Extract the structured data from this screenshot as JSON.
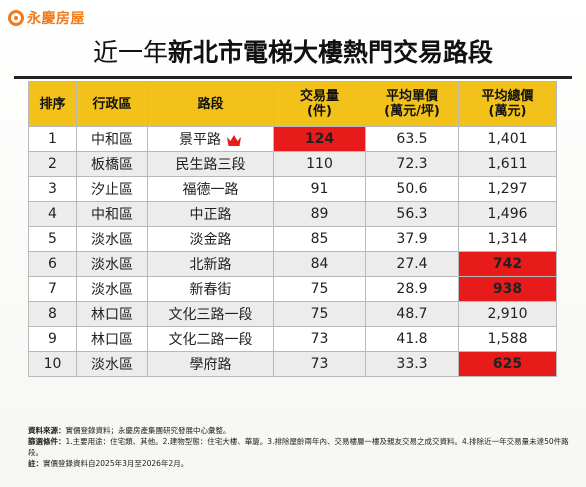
{
  "brand": {
    "name": "永慶房屋",
    "accent": "#f07a1a"
  },
  "title": {
    "prefix": "近一年",
    "main": "新北市電梯大樓熱門交易路段"
  },
  "colors": {
    "header": "#f2c21a",
    "highlight": "#e81b1b",
    "road": "#1d5bc7",
    "alt_row": "#ececec"
  },
  "chart_data": {
    "type": "table",
    "headers": {
      "rank": "排序",
      "district": "行政區",
      "road": "路段",
      "volume": "交易量\n(件)",
      "unit_price": "平均單價\n(萬元/坪)",
      "total_price": "平均總價\n(萬元)"
    },
    "rows": [
      {
        "rank": "1",
        "district": "中和區",
        "road": "景平路",
        "volume": "124",
        "unit_price": "63.5",
        "total_price": "1,401",
        "crown": true,
        "volume_hl": true
      },
      {
        "rank": "2",
        "district": "板橋區",
        "road": "民生路三段",
        "volume": "110",
        "unit_price": "72.3",
        "total_price": "1,611"
      },
      {
        "rank": "3",
        "district": "汐止區",
        "road": "福德一路",
        "volume": "91",
        "unit_price": "50.6",
        "total_price": "1,297"
      },
      {
        "rank": "4",
        "district": "中和區",
        "road": "中正路",
        "volume": "89",
        "unit_price": "56.3",
        "total_price": "1,496"
      },
      {
        "rank": "5",
        "district": "淡水區",
        "road": "淡金路",
        "volume": "85",
        "unit_price": "37.9",
        "total_price": "1,314"
      },
      {
        "rank": "6",
        "district": "淡水區",
        "road": "北新路",
        "volume": "84",
        "unit_price": "27.4",
        "total_price": "742",
        "total_hl": true
      },
      {
        "rank": "7",
        "district": "淡水區",
        "road": "新春街",
        "volume": "75",
        "unit_price": "28.9",
        "total_price": "938",
        "total_hl": true
      },
      {
        "rank": "8",
        "district": "林口區",
        "road": "文化三路一段",
        "volume": "75",
        "unit_price": "48.7",
        "total_price": "2,910"
      },
      {
        "rank": "9",
        "district": "林口區",
        "road": "文化二路一段",
        "volume": "73",
        "unit_price": "41.8",
        "total_price": "1,588"
      },
      {
        "rank": "10",
        "district": "淡水區",
        "road": "學府路",
        "volume": "73",
        "unit_price": "33.3",
        "total_price": "625",
        "total_hl": true
      }
    ]
  },
  "notes": {
    "source_label": "資料來源：",
    "source": "實價登錄資料；永慶房產集團研究發展中心彙整。",
    "filter_label": "篩選條件：",
    "filter": "1.主要用途：住宅類、其他。2.建物型態：住宅大樓、華廈。3.排除屋齡兩年內、交易樓層一樓及親友交易之成交資料。4.排除近一年交易量未達50件路段。",
    "note_label": "註：",
    "note": "實價登錄資料自2025年3月至2026年2月。"
  }
}
